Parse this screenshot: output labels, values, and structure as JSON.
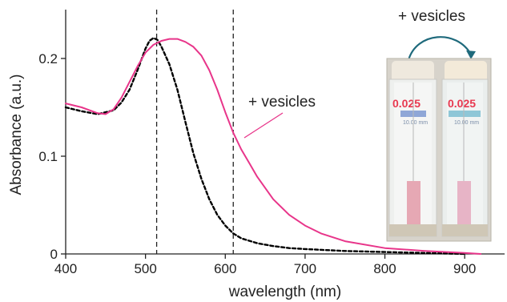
{
  "chart_data": {
    "type": "line",
    "title": "",
    "xlabel": "wavelength (nm)",
    "ylabel": "Absorbance (a.u.)",
    "xlim": [
      400,
      950
    ],
    "ylim": [
      0,
      0.25
    ],
    "xticks": [
      400,
      500,
      600,
      700,
      800,
      900
    ],
    "xtick_labels": [
      "400",
      "500",
      "600",
      "700",
      "800",
      "900"
    ],
    "yticks": [
      0,
      0.1,
      0.2
    ],
    "ytick_labels": [
      "0",
      "0.1",
      "0.2"
    ],
    "grid": false,
    "vertical_lines": [
      514,
      610
    ],
    "series": [
      {
        "name": "",
        "style": "dashed",
        "color": "#000000",
        "x": [
          400,
          420,
          440,
          460,
          470,
          480,
          490,
          500,
          505,
          510,
          515,
          520,
          530,
          540,
          550,
          560,
          570,
          580,
          590,
          600,
          610,
          620,
          640,
          660,
          680,
          700,
          750,
          800,
          850,
          900
        ],
        "y": [
          0.15,
          0.146,
          0.143,
          0.147,
          0.155,
          0.168,
          0.188,
          0.21,
          0.218,
          0.221,
          0.219,
          0.212,
          0.194,
          0.168,
          0.135,
          0.103,
          0.077,
          0.056,
          0.04,
          0.029,
          0.021,
          0.016,
          0.011,
          0.008,
          0.006,
          0.005,
          0.003,
          0.002,
          0.001,
          0.0
        ]
      },
      {
        "name": "+ vesicles",
        "style": "solid",
        "color": "#e8358a",
        "x": [
          400,
          420,
          440,
          450,
          460,
          470,
          480,
          490,
          500,
          510,
          520,
          530,
          540,
          550,
          560,
          570,
          580,
          590,
          600,
          610,
          620,
          630,
          640,
          660,
          680,
          700,
          720,
          750,
          800,
          850,
          900,
          920
        ],
        "y": [
          0.154,
          0.15,
          0.144,
          0.143,
          0.148,
          0.16,
          0.176,
          0.192,
          0.206,
          0.214,
          0.218,
          0.22,
          0.22,
          0.217,
          0.212,
          0.203,
          0.188,
          0.168,
          0.145,
          0.124,
          0.107,
          0.093,
          0.079,
          0.056,
          0.04,
          0.029,
          0.021,
          0.013,
          0.006,
          0.003,
          0.001,
          0.0
        ]
      }
    ],
    "annotations": [
      {
        "text": "+ vesicles",
        "role": "series-label"
      },
      {
        "text": "+ vesicles",
        "role": "inset-arrow-label"
      }
    ]
  },
  "inset": {
    "arrow_label": "+ vesicles",
    "left_vial_label": "0.025",
    "right_vial_label": "0.025",
    "left_vial_color": "#e6a8b4",
    "right_vial_color": "#e7b4c6",
    "arrow_color": "#1f6a7c"
  }
}
